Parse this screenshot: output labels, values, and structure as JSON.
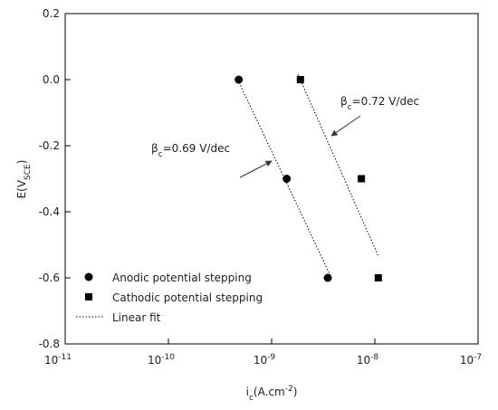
{
  "chart_data": {
    "type": "scatter",
    "x_label": [
      "i",
      "c",
      "(A.cm",
      "-2",
      ")"
    ],
    "y_label": [
      "E(V",
      "SCE",
      ")"
    ],
    "xscale": "log",
    "xlim": [
      1e-11,
      1e-07
    ],
    "xticks": [
      {
        "value": 1e-11,
        "label": [
          "10",
          "-11"
        ]
      },
      {
        "value": 1e-10,
        "label": [
          "10",
          "-10"
        ]
      },
      {
        "value": 1e-09,
        "label": [
          "10",
          "-9"
        ]
      },
      {
        "value": 1e-08,
        "label": [
          "10",
          "-8"
        ]
      },
      {
        "value": 1e-07,
        "label": [
          "10",
          "-7"
        ]
      }
    ],
    "ylim": [
      -0.8,
      0.2
    ],
    "yticks": [
      0.2,
      {
        "value": 0,
        "label": "0.0"
      },
      -0.2,
      -0.4,
      -0.6,
      -0.8
    ],
    "series": [
      {
        "name": "Anodic potential stepping",
        "marker": "circle",
        "color": "#000000",
        "x": [
          4.8e-10,
          1.4e-09,
          3.5e-09
        ],
        "values": [
          0,
          -0.3,
          -0.6
        ]
      },
      {
        "name": "Cathodic potential stepping",
        "marker": "square",
        "color": "#000000",
        "x": [
          1.9e-09,
          7.4e-09,
          1.08e-08
        ],
        "values": [
          0,
          -0.3,
          -0.6
        ]
      }
    ],
    "fit_label": "Linear fit",
    "fit_lines": [
      {
        "x": [
          4.7e-10,
          3.8e-09
        ],
        "values": [
          0,
          -0.6
        ]
      },
      {
        "x": [
          1.8e-09,
          1.08e-08
        ],
        "values": [
          0.016,
          -0.534
        ]
      }
    ],
    "annotations": [
      [
        "β",
        "c",
        "=0.72 V/dec"
      ],
      [
        "β",
        "c",
        "=0.69 V/dec"
      ]
    ]
  }
}
